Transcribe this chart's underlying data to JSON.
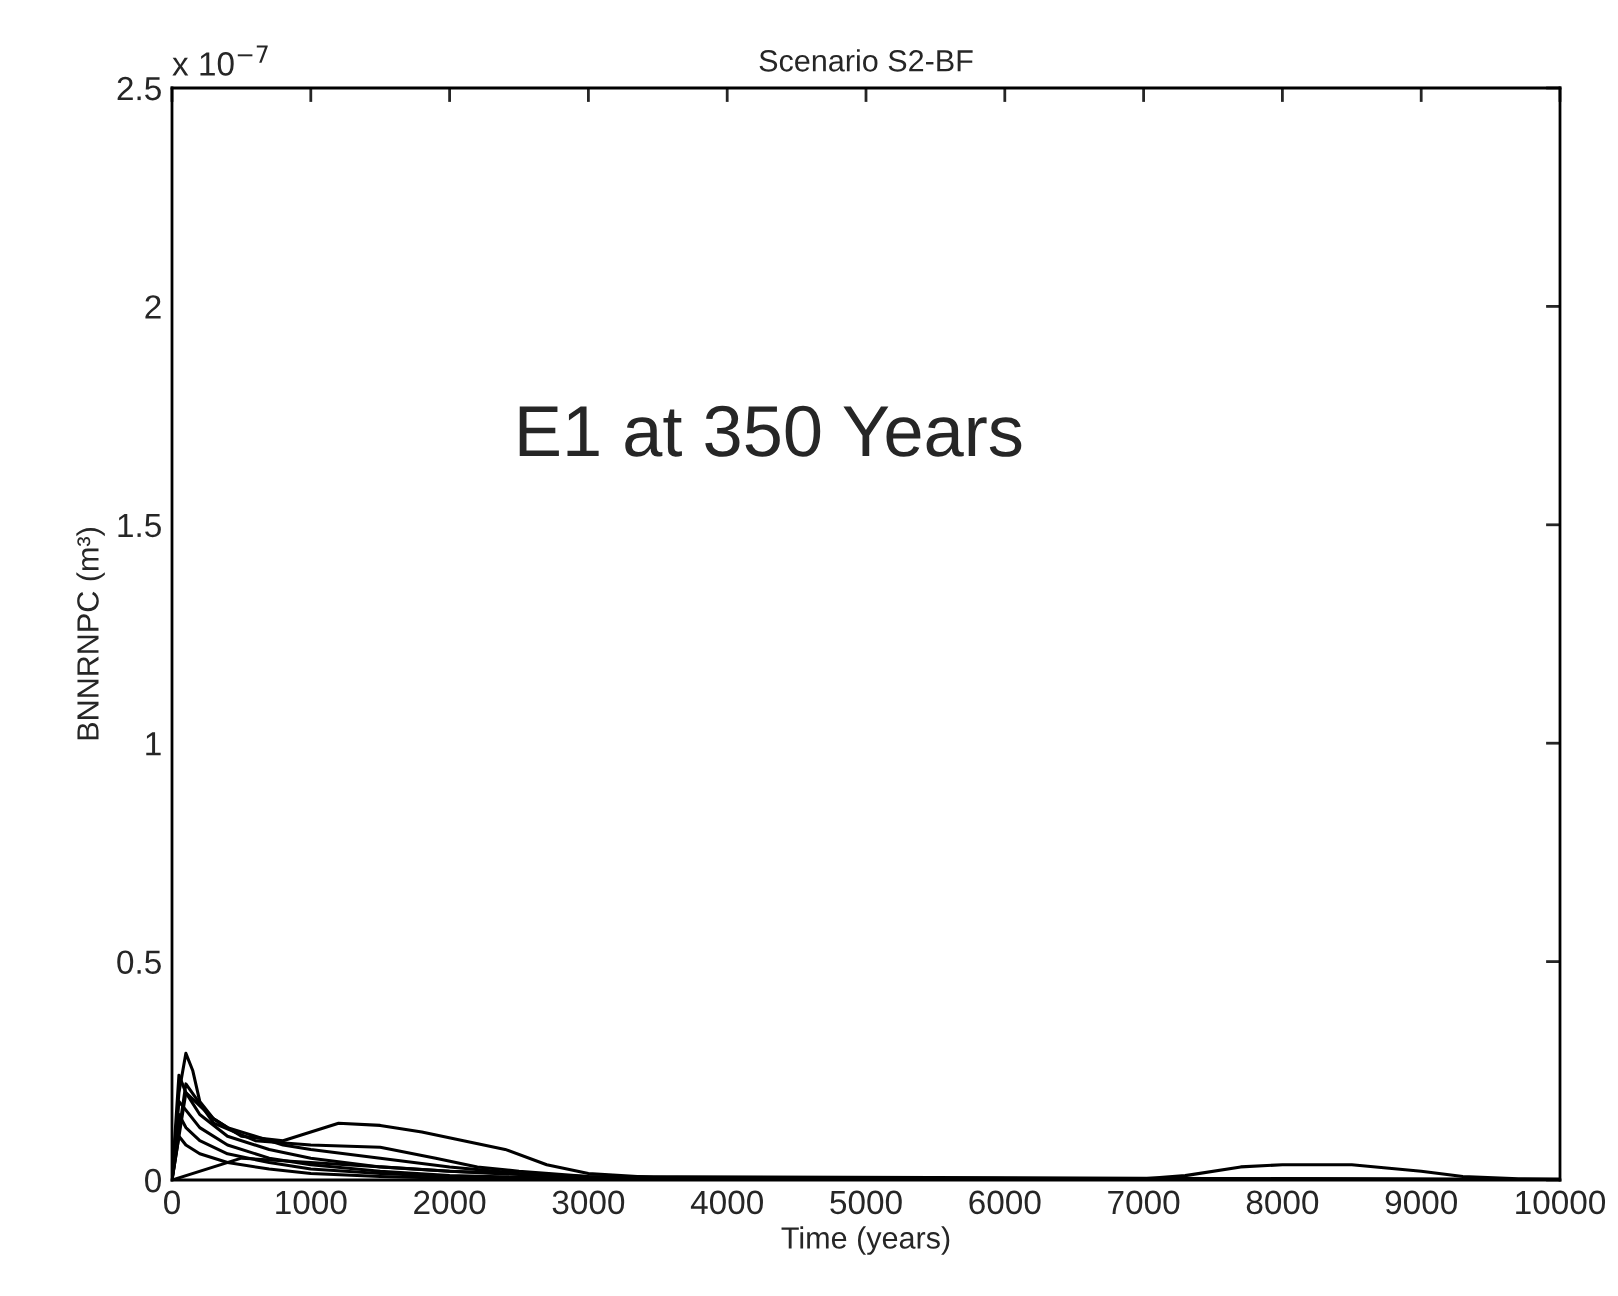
{
  "chart_data": {
    "type": "line",
    "title": "Scenario S2-BF",
    "xlabel": "Time (years)",
    "ylabel": "BNNRNPC (m³)",
    "annotations": [
      "E1 at 350 Years",
      "x 10$^{−7}$"
    ],
    "xlim": [
      0,
      10000
    ],
    "xticks": [
      0,
      1000,
      2000,
      3000,
      4000,
      5000,
      6000,
      7000,
      8000,
      9000,
      10000
    ],
    "ylim": [
      0,
      2.5
    ],
    "yticks": [
      0,
      0.5,
      1,
      1.5,
      2,
      2.5
    ],
    "grid": false,
    "legend": false,
    "line_style": "solid",
    "marker": "none",
    "series": [
      {
        "color": "#000000",
        "x": [
          0,
          50,
          100,
          150,
          200,
          300,
          400,
          600,
          800,
          1000,
          1500,
          2000,
          2500,
          3000,
          4000,
          10000
        ],
        "values": [
          0,
          0.2,
          0.29,
          0.25,
          0.18,
          0.14,
          0.12,
          0.1,
          0.08,
          0.07,
          0.05,
          0.03,
          0.015,
          0.005,
          0.002,
          0.001
        ]
      },
      {
        "color": "#000000",
        "x": [
          0,
          100,
          300,
          500,
          800,
          1000,
          1200,
          1500,
          1800,
          2100,
          2400,
          2700,
          3000,
          3500,
          10000
        ],
        "values": [
          0,
          0.2,
          0.14,
          0.1,
          0.09,
          0.11,
          0.13,
          0.125,
          0.11,
          0.09,
          0.07,
          0.035,
          0.015,
          0.005,
          0.001
        ]
      },
      {
        "color": "#000000",
        "x": [
          0,
          100,
          300,
          600,
          1000,
          1500,
          1900,
          2200,
          2500,
          3000,
          10000
        ],
        "values": [
          0,
          0.22,
          0.13,
          0.09,
          0.08,
          0.075,
          0.05,
          0.03,
          0.02,
          0.008,
          0.001
        ]
      },
      {
        "color": "#000000",
        "x": [
          0,
          500,
          1000,
          2000,
          3000,
          4000,
          5000,
          6000,
          7000,
          7300,
          7700,
          8000,
          8500,
          9000,
          9300,
          9700,
          10000
        ],
        "values": [
          0,
          0.05,
          0.04,
          0.02,
          0.008,
          0.004,
          0.003,
          0.002,
          0.003,
          0.01,
          0.03,
          0.035,
          0.035,
          0.02,
          0.008,
          0.003,
          0.002
        ]
      },
      {
        "color": "#000000",
        "x": [
          0,
          50,
          100,
          200,
          400,
          700,
          1000,
          1500,
          2000,
          3000,
          10000
        ],
        "values": [
          0,
          0.24,
          0.2,
          0.15,
          0.1,
          0.07,
          0.05,
          0.03,
          0.02,
          0.005,
          0.001
        ]
      },
      {
        "color": "#000000",
        "x": [
          0,
          50,
          100,
          200,
          400,
          700,
          1000,
          1500,
          2000,
          3000,
          10000
        ],
        "values": [
          0,
          0.18,
          0.16,
          0.12,
          0.08,
          0.05,
          0.035,
          0.02,
          0.01,
          0.003,
          0.001
        ]
      },
      {
        "color": "#000000",
        "x": [
          0,
          50,
          100,
          200,
          400,
          700,
          1000,
          1500,
          2000,
          3000,
          10000
        ],
        "values": [
          0,
          0.15,
          0.12,
          0.09,
          0.06,
          0.04,
          0.025,
          0.015,
          0.008,
          0.002,
          0.001
        ]
      },
      {
        "color": "#000000",
        "x": [
          0,
          50,
          100,
          200,
          400,
          700,
          1000,
          1500,
          2000,
          3000,
          10000
        ],
        "values": [
          0,
          0.1,
          0.08,
          0.06,
          0.04,
          0.025,
          0.015,
          0.008,
          0.004,
          0.001,
          0
        ]
      }
    ]
  }
}
